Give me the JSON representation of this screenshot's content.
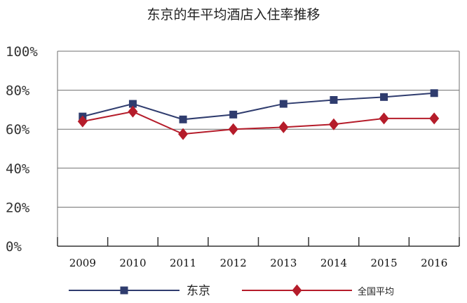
{
  "chart_data": {
    "type": "line",
    "title": "东京的年平均酒店入住率推移",
    "categories": [
      "2009",
      "2010",
      "2011",
      "2012",
      "2013",
      "2014",
      "2015",
      "2016"
    ],
    "yticks": [
      "0%",
      "20%",
      "40%",
      "60%",
      "80%",
      "100%"
    ],
    "ylim": [
      0,
      100
    ],
    "grid": true,
    "legend_position": "bottom",
    "series": [
      {
        "name": "东京",
        "values": [
          66.5,
          73,
          65,
          67.5,
          73,
          75,
          76.5,
          78.5
        ],
        "color": "#2f3c6e",
        "marker": "square"
      },
      {
        "name": "全国平均",
        "values": [
          64,
          69,
          57.5,
          60,
          61,
          62.5,
          65.5,
          65.5
        ],
        "color": "#b51c2a",
        "marker": "diamond"
      }
    ]
  }
}
